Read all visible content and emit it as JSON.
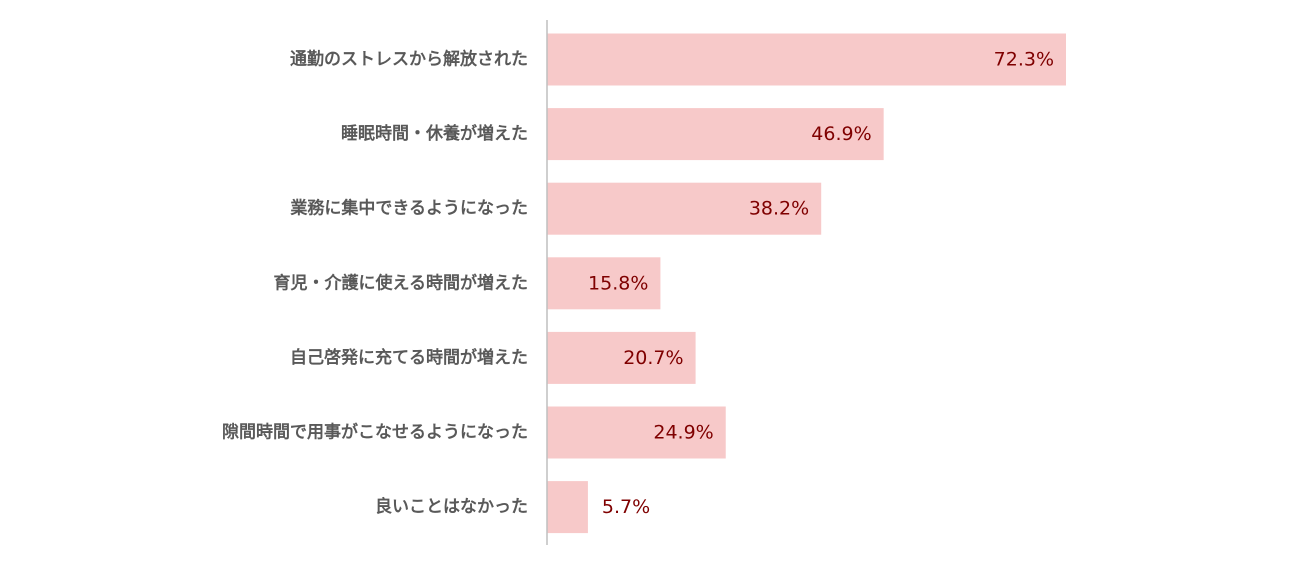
{
  "chart_data": {
    "type": "bar",
    "orientation": "horizontal",
    "categories": [
      "通勤のストレスから解放された",
      "睡眠時間・休養が増えた",
      "業務に集中できるようになった",
      "育児・介護に使える時間が増えた",
      "自己啓発に充てる時間が増えた",
      "隙間時間で用事がこなせるようになった",
      "良いことはなかった"
    ],
    "values": [
      72.3,
      46.9,
      38.2,
      15.8,
      20.7,
      24.9,
      5.7
    ],
    "value_labels": [
      "72.3%",
      "46.9%",
      "38.2%",
      "15.8%",
      "20.7%",
      "24.9%",
      "5.7%"
    ],
    "unit": "%",
    "xlim": [
      0,
      100
    ],
    "grid": false,
    "legend": "none",
    "colors": {
      "bar": "#f7c9c9",
      "axis": "#bfbfbf",
      "category_text": "#595959",
      "value_text": "#7f0000"
    }
  }
}
